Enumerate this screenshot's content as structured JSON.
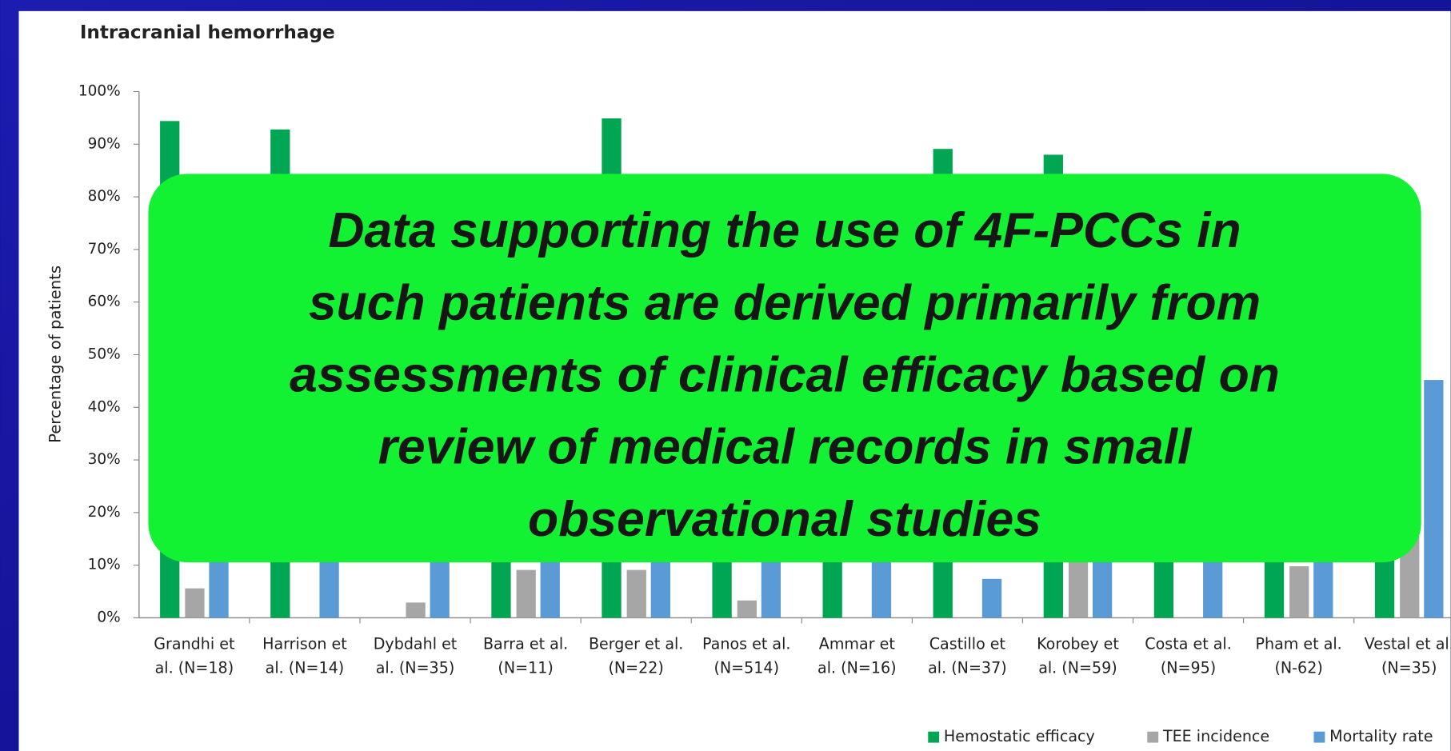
{
  "chart_data": {
    "type": "bar",
    "title": "Intracranial hemorrhage",
    "y_label": "Percentage of patients",
    "categories": [
      [
        "Grandhi et",
        "al. (N=18)"
      ],
      [
        "Harrison et",
        "al. (N=14)"
      ],
      [
        "Dybdahl et",
        "al. (N=35)"
      ],
      [
        "Barra et al.",
        "(N=11)"
      ],
      [
        "Berger et al.",
        "(N=22)"
      ],
      [
        "Panos et al.",
        "(N=514)"
      ],
      [
        "Ammar et",
        "al. (N=16)"
      ],
      [
        "Castillo et",
        "al. (N=37)"
      ],
      [
        "Korobey et",
        "al. (N=59)"
      ],
      [
        "Costa et al.",
        "(N=95)"
      ],
      [
        "Pham et al.",
        "(N-62)"
      ],
      [
        "Vestal et al.",
        "(N=35)"
      ]
    ],
    "series": [
      {
        "name": "Hemostatic efficacy",
        "color": "#00a651",
        "values": [
          94.4,
          92.8,
          null,
          82,
          94.9,
          70,
          75,
          89.1,
          88,
          80,
          72,
          70
        ]
      },
      {
        "name": "TEE incidence",
        "color": "#a6a6a6",
        "values": [
          5.6,
          0,
          2.9,
          9.1,
          9.1,
          3.3,
          0,
          0,
          13,
          0,
          9.8,
          21
        ]
      },
      {
        "name": "Mortality rate",
        "color": "#5b9bd5",
        "values": [
          16,
          14,
          11,
          18,
          13,
          13,
          12.5,
          7.4,
          11,
          12,
          17,
          45.2
        ]
      }
    ],
    "ylim": [
      0,
      100
    ],
    "yticks": [
      {
        "value": 0,
        "label": "0%"
      },
      {
        "value": 10,
        "label": "10%"
      },
      {
        "value": 20,
        "label": "20%"
      },
      {
        "value": 30,
        "label": "30%"
      },
      {
        "value": 40,
        "label": "40%"
      },
      {
        "value": 50,
        "label": "50%"
      },
      {
        "value": 60,
        "label": "60%"
      },
      {
        "value": 70,
        "label": "70%"
      },
      {
        "value": 80,
        "label": "80%"
      },
      {
        "value": 90,
        "label": "90%"
      },
      {
        "value": 100,
        "label": "100%"
      }
    ],
    "grid": false,
    "legend": "bottom-right",
    "annotation": [
      "Data supporting the use of 4F-PCCs in",
      "such patients are derived primarily from",
      "assessments of clinical efficacy based on",
      "review of medical records in small",
      "observational studies"
    ]
  }
}
